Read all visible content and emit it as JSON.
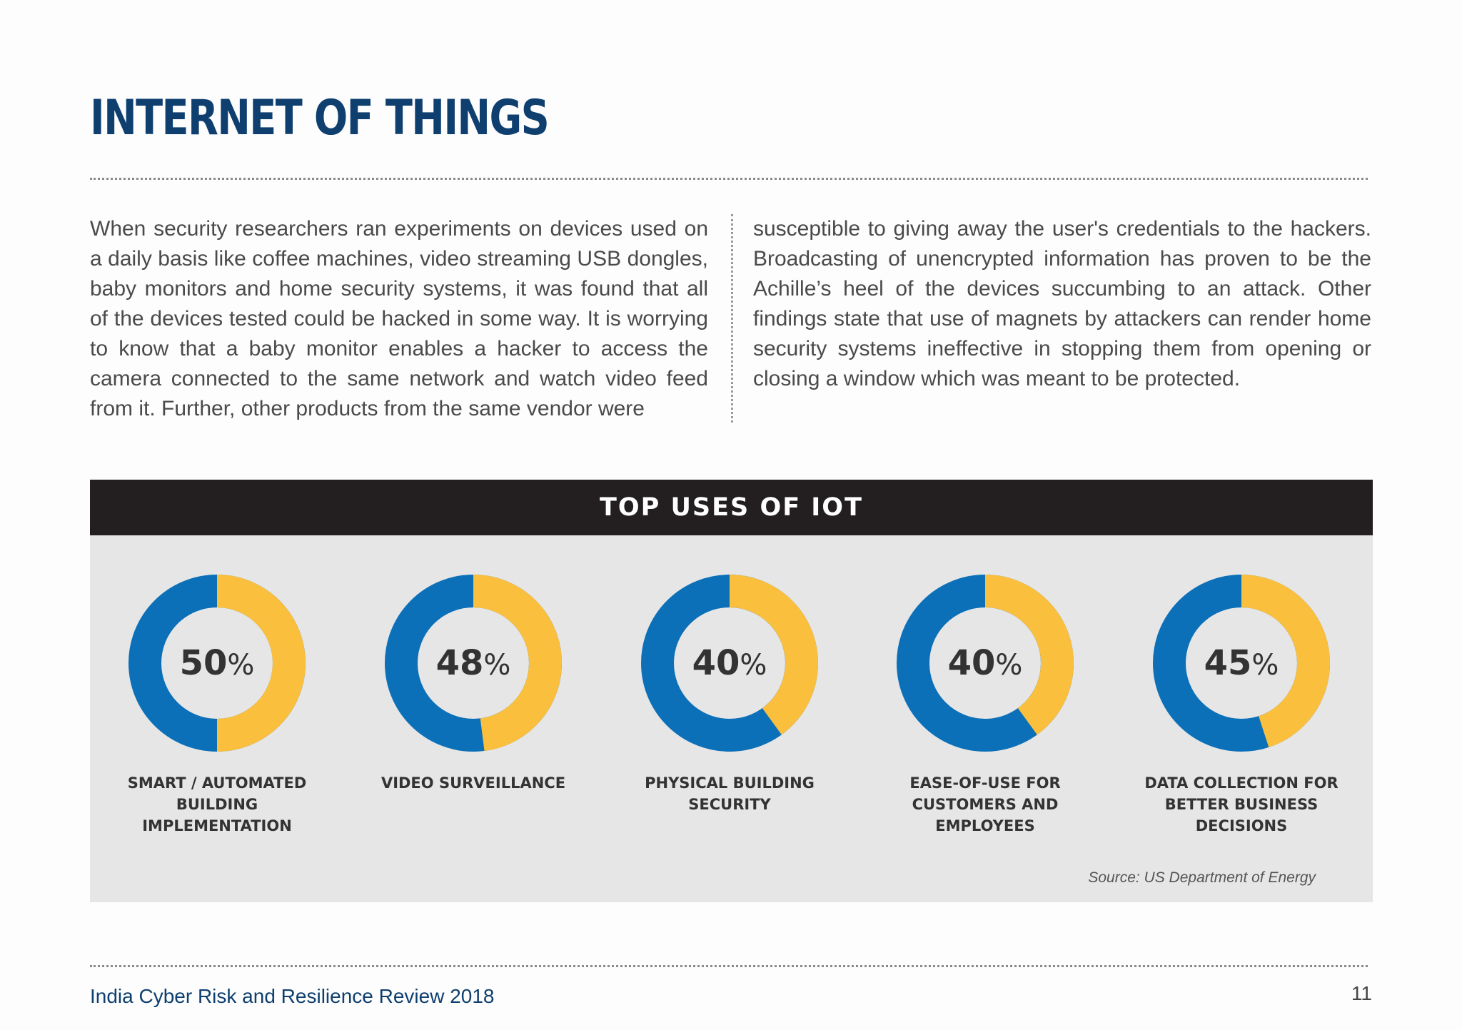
{
  "page": {
    "title": "INTERNET OF THINGS",
    "body_left": "When security researchers ran experiments on devices used on a daily basis like coffee machines, video streaming USB dongles, baby monitors and home security systems, it was found that all of the devices tested could be hacked in some way. It is worrying to know that a baby monitor enables a hacker to access the camera connected to the same network and watch video feed from it. Further, other products from the same vendor were",
    "body_right": "susceptible to giving away the user's credentials to the hackers. Broadcasting of unencrypted information has proven to be the Achille’s heel of the devices succumbing to an attack. Other findings state that use of magnets by attackers can render home security systems ineffective in stopping them from opening or closing a window which was meant to be protected."
  },
  "colors": {
    "title": "#0e3f6f",
    "donut_blue": "#0b70b8",
    "donut_yellow": "#fbbf3e",
    "panel_bg": "#e6e6e7",
    "header_bg": "#231f20"
  },
  "chart_data": {
    "type": "pie",
    "title": "TOP USES OF IOT",
    "percent_symbol": "%",
    "categories": [
      "SMART / AUTOMATED BUILDING IMPLEMENTATION",
      "VIDEO SURVEILLANCE",
      "PHYSICAL BUILDING SECURITY",
      "EASE-OF-USE FOR CUSTOMERS AND EMPLOYEES",
      "DATA COLLECTION FOR BETTER BUSINESS DECISIONS"
    ],
    "values": [
      50,
      48,
      40,
      40,
      45
    ],
    "source": "Source: US Department of Energy"
  },
  "footer": {
    "publication": "India Cyber Risk and Resilience Review 2018",
    "page_number": "11"
  }
}
